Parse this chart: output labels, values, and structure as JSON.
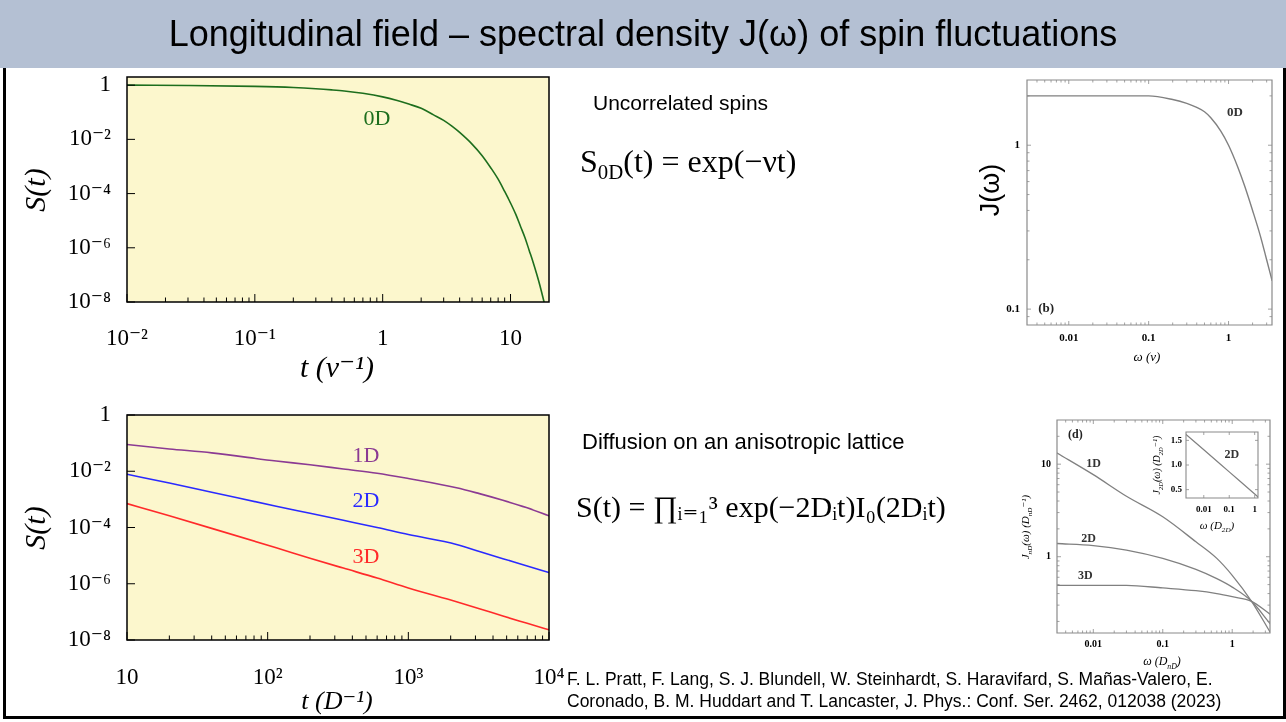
{
  "chart_data": [
    {
      "type": "line",
      "xlabel": "t (ν⁻¹)",
      "ylabel": "S(t)",
      "log": "xy",
      "xlim": [
        0.01,
        20
      ],
      "ylim": [
        1e-08,
        2
      ],
      "xticks": [
        {
          "value": 0.01,
          "label": "10⁻²"
        },
        {
          "value": 0.02,
          "label": null
        },
        {
          "value": 0.03,
          "label": null
        },
        {
          "value": 0.04,
          "label": null
        },
        {
          "value": 0.05,
          "label": null
        },
        {
          "value": 0.06,
          "label": null
        },
        {
          "value": 0.07,
          "label": null
        },
        {
          "value": 0.08,
          "label": null
        },
        {
          "value": 0.09,
          "label": null
        },
        {
          "value": 0.1,
          "label": "10⁻¹"
        },
        {
          "value": 0.2,
          "label": null
        },
        {
          "value": 0.3,
          "label": null
        },
        {
          "value": 0.4,
          "label": null
        },
        {
          "value": 0.5,
          "label": null
        },
        {
          "value": 0.6,
          "label": null
        },
        {
          "value": 0.7,
          "label": null
        },
        {
          "value": 0.8,
          "label": null
        },
        {
          "value": 0.9,
          "label": null
        },
        1,
        {
          "value": 2,
          "label": null
        },
        {
          "value": 3,
          "label": null
        },
        {
          "value": 4,
          "label": null
        },
        {
          "value": 5,
          "label": null
        },
        {
          "value": 6,
          "label": null
        },
        {
          "value": 7,
          "label": null
        },
        {
          "value": 8,
          "label": null
        },
        {
          "value": 9,
          "label": null
        },
        10
      ],
      "yticks": [
        {
          "value": 1e-08,
          "label": "10⁻⁸"
        },
        {
          "value": 1e-06,
          "label": "10⁻⁶"
        },
        {
          "value": 0.0001,
          "label": "10⁻⁴"
        },
        {
          "value": 0.01,
          "label": "10⁻²"
        },
        1
      ],
      "x": [
        0.01,
        0.03,
        0.1,
        0.2,
        0.3,
        0.4,
        0.5,
        0.7,
        1,
        1.3,
        1.6,
        2,
        2.5,
        3,
        3.5,
        4,
        5,
        6,
        7,
        8,
        9,
        10,
        11,
        12,
        13,
        14,
        15,
        16,
        17,
        18.3
      ],
      "series": [
        {
          "name": "0D",
          "color": "#1d6e1d",
          "values": [
            1,
            0.97,
            0.9,
            0.82,
            0.74,
            0.67,
            0.61,
            0.5,
            0.37,
            0.27,
            0.2,
            0.14,
            0.08,
            0.05,
            0.03,
            0.018,
            0.0067,
            0.0025,
            0.0009,
            0.00034,
            0.00012,
            4.5e-05,
            1.7e-05,
            6e-06,
            2.3e-06,
            8e-07,
            3e-07,
            1.1e-07,
            4e-08,
            1e-08
          ]
        }
      ]
    },
    {
      "type": "line",
      "xlabel": "ω (ν)",
      "ylabel": "J(ω)",
      "log": "xy",
      "xlim": [
        0.003,
        3.5
      ],
      "ylim": [
        0.08,
        2.5
      ],
      "xticks": [
        {
          "value": 0.004,
          "label": null
        },
        {
          "value": 0.005,
          "label": null
        },
        {
          "value": 0.006,
          "label": null
        },
        {
          "value": 0.007,
          "label": null
        },
        {
          "value": 0.008,
          "label": null
        },
        {
          "value": 0.009,
          "label": null
        },
        0.01,
        {
          "value": 0.02,
          "label": null
        },
        {
          "value": 0.03,
          "label": null
        },
        {
          "value": 0.04,
          "label": null
        },
        {
          "value": 0.05,
          "label": null
        },
        {
          "value": 0.06,
          "label": null
        },
        {
          "value": 0.07,
          "label": null
        },
        {
          "value": 0.08,
          "label": null
        },
        {
          "value": 0.09,
          "label": null
        },
        0.1,
        {
          "value": 0.2,
          "label": null
        },
        {
          "value": 0.3,
          "label": null
        },
        {
          "value": 0.4,
          "label": null
        },
        {
          "value": 0.5,
          "label": null
        },
        {
          "value": 0.6,
          "label": null
        },
        {
          "value": 0.7,
          "label": null
        },
        {
          "value": 0.8,
          "label": null
        },
        {
          "value": 0.9,
          "label": null
        },
        1,
        {
          "value": 2,
          "label": null
        },
        {
          "value": 3,
          "label": null
        }
      ],
      "yticks": [
        {
          "value": 0.09,
          "label": null
        },
        0.1,
        {
          "value": 0.2,
          "label": null
        },
        {
          "value": 0.3,
          "label": null
        },
        {
          "value": 0.4,
          "label": null
        },
        {
          "value": 0.5,
          "label": null
        },
        {
          "value": 0.6,
          "label": null
        },
        {
          "value": 0.7,
          "label": null
        },
        {
          "value": 0.8,
          "label": null
        },
        {
          "value": 0.9,
          "label": null
        },
        1,
        {
          "value": 2,
          "label": null
        }
      ],
      "x": [
        0.003,
        0.01,
        0.03,
        0.1,
        0.2,
        0.3,
        0.4,
        0.5,
        0.6,
        0.8,
        1,
        1.3,
        1.6,
        2,
        2.5,
        3,
        3.5
      ],
      "series": [
        {
          "name": "0D",
          "color": "#808080",
          "values": [
            2,
            2,
            2,
            2,
            1.9,
            1.8,
            1.7,
            1.6,
            1.47,
            1.22,
            1,
            0.74,
            0.56,
            0.4,
            0.28,
            0.2,
            0.15
          ]
        }
      ],
      "annotations": [
        "(b)"
      ]
    },
    {
      "type": "line",
      "xlabel": "t (D⁻¹)",
      "ylabel": "S(t)",
      "log": "xy",
      "xlim": [
        10,
        10000
      ],
      "ylim": [
        1e-08,
        1
      ],
      "xticks": [
        10,
        {
          "value": 20,
          "label": null
        },
        {
          "value": 30,
          "label": null
        },
        {
          "value": 40,
          "label": null
        },
        {
          "value": 50,
          "label": null
        },
        {
          "value": 60,
          "label": null
        },
        {
          "value": 70,
          "label": null
        },
        {
          "value": 80,
          "label": null
        },
        {
          "value": 90,
          "label": null
        },
        {
          "value": 100,
          "label": "10²"
        },
        {
          "value": 200,
          "label": null
        },
        {
          "value": 300,
          "label": null
        },
        {
          "value": 400,
          "label": null
        },
        {
          "value": 500,
          "label": null
        },
        {
          "value": 600,
          "label": null
        },
        {
          "value": 700,
          "label": null
        },
        {
          "value": 800,
          "label": null
        },
        {
          "value": 900,
          "label": null
        },
        {
          "value": 1000,
          "label": "10³"
        },
        {
          "value": 2000,
          "label": null
        },
        {
          "value": 3000,
          "label": null
        },
        {
          "value": 4000,
          "label": null
        },
        {
          "value": 5000,
          "label": null
        },
        {
          "value": 6000,
          "label": null
        },
        {
          "value": 7000,
          "label": null
        },
        {
          "value": 8000,
          "label": null
        },
        {
          "value": 9000,
          "label": null
        },
        {
          "value": 10000,
          "label": "10⁴"
        }
      ],
      "yticks": [
        {
          "value": 1e-08,
          "label": "10⁻⁸"
        },
        {
          "value": 1e-06,
          "label": "10⁻⁶"
        },
        {
          "value": 0.0001,
          "label": "10⁻⁴"
        },
        {
          "value": 0.01,
          "label": "10⁻²"
        },
        1
      ],
      "x": [
        10,
        20,
        40,
        115,
        200,
        345,
        600,
        1000,
        2200,
        3200,
        4700,
        6900,
        10000
      ],
      "series": [
        {
          "name": "1D",
          "color": "#8b3a93",
          "values": [
            0.089,
            0.062,
            0.045,
            0.023,
            0.017,
            0.012,
            0.0085,
            0.0055,
            0.0026,
            0.0016,
            0.00093,
            0.00051,
            0.00026
          ]
        },
        {
          "name": "2D",
          "color": "#2a2aff",
          "values": [
            0.0078,
            0.0038,
            0.0018,
            0.00057,
            0.00032,
            0.00018,
            0.0001,
            5.6e-05,
            2.5e-05,
            1.4e-05,
            7.8e-06,
            4.4e-06,
            2.5e-06
          ]
        },
        {
          "name": "3D",
          "color": "#ff2a2a",
          "values": [
            0.00071,
            0.00026,
            9.3e-05,
            1.9e-05,
            8.1e-06,
            3.6e-06,
            1.6e-06,
            7.1e-07,
            2.3e-07,
            1.3e-07,
            7.1e-08,
            4e-08,
            2.3e-08
          ]
        }
      ]
    },
    {
      "type": "line",
      "xlabel": "ω (D$_{nD}$)",
      "ylabel": "J$_{nD}$(ω) (D$_{nD}$⁻¹)",
      "log": "xy",
      "xlim": [
        0.003,
        3.5
      ],
      "ylim": [
        0.15,
        30
      ],
      "xticks": [
        {
          "value": 0.004,
          "label": null
        },
        {
          "value": 0.005,
          "label": null
        },
        {
          "value": 0.006,
          "label": null
        },
        {
          "value": 0.007,
          "label": null
        },
        {
          "value": 0.008,
          "label": null
        },
        {
          "value": 0.009,
          "label": null
        },
        0.01,
        {
          "value": 0.02,
          "label": null
        },
        {
          "value": 0.03,
          "label": null
        },
        {
          "value": 0.04,
          "label": null
        },
        {
          "value": 0.05,
          "label": null
        },
        {
          "value": 0.06,
          "label": null
        },
        {
          "value": 0.07,
          "label": null
        },
        {
          "value": 0.08,
          "label": null
        },
        {
          "value": 0.09,
          "label": null
        },
        0.1,
        {
          "value": 0.2,
          "label": null
        },
        {
          "value": 0.3,
          "label": null
        },
        {
          "value": 0.4,
          "label": null
        },
        {
          "value": 0.5,
          "label": null
        },
        {
          "value": 0.6,
          "label": null
        },
        {
          "value": 0.7,
          "label": null
        },
        {
          "value": 0.8,
          "label": null
        },
        {
          "value": 0.9,
          "label": null
        },
        1,
        {
          "value": 2,
          "label": null
        },
        {
          "value": 3,
          "label": null
        }
      ],
      "yticks": [
        {
          "value": 0.2,
          "label": null
        },
        {
          "value": 0.3,
          "label": null
        },
        {
          "value": 0.4,
          "label": null
        },
        {
          "value": 0.5,
          "label": null
        },
        {
          "value": 0.6,
          "label": null
        },
        {
          "value": 0.7,
          "label": null
        },
        {
          "value": 0.8,
          "label": null
        },
        {
          "value": 0.9,
          "label": null
        },
        1,
        {
          "value": 2,
          "label": null
        },
        {
          "value": 3,
          "label": null
        },
        {
          "value": 4,
          "label": null
        },
        {
          "value": 5,
          "label": null
        },
        {
          "value": 6,
          "label": null
        },
        {
          "value": 7,
          "label": null
        },
        {
          "value": 8,
          "label": null
        },
        {
          "value": 9,
          "label": null
        },
        10,
        {
          "value": 20,
          "label": null
        }
      ],
      "x": [
        0.003,
        0.01,
        0.03,
        0.1,
        0.3,
        0.6,
        1,
        1.9,
        3.5
      ],
      "series": [
        {
          "name": "1D",
          "color": "#808080",
          "values": [
            13.2,
            7.7,
            4.5,
            2.7,
            1.45,
            0.96,
            0.63,
            0.33,
            0.154
          ]
        },
        {
          "name": "2D",
          "color": "#808080",
          "values": [
            1.39,
            1.32,
            1.18,
            0.96,
            0.73,
            0.58,
            0.47,
            0.33,
            0.19
          ]
        },
        {
          "name": "3D",
          "color": "#808080",
          "values": [
            0.49,
            0.49,
            0.49,
            0.46,
            0.43,
            0.4,
            0.37,
            0.33,
            0.24
          ]
        }
      ],
      "annotations": [
        "(d)"
      ]
    },
    {
      "type": "line",
      "xlabel": "ω (D$_{2D}$)",
      "ylabel": "J$_{2D}$(ω) (D$_{2D}$⁻¹)",
      "log": "x",
      "xlim": [
        0.002,
        1.35
      ],
      "ylim": [
        0.33,
        1.67
      ],
      "xticks": [
        0.01,
        0.1,
        1
      ],
      "yticks": [
        0.5,
        {
          "value": 1,
          "label": "1.0"
        },
        1.5
      ],
      "x": [
        0.002,
        0.01,
        0.1,
        1,
        1.35
      ],
      "series": [
        {
          "name": "2D",
          "color": "#808080",
          "values": [
            1.62,
            1.31,
            0.86,
            0.41,
            0.35
          ]
        }
      ]
    },
    {
      "type": "other",
      "title": "Longitudinal field – spectral density J(ω) of spin fluctuations",
      "annotations": [
        "Uncorrelated spins",
        "S$_{0D}$(t) = exp(−νt)",
        "Diffusion on an anisotropic lattice",
        "S(t) = ∏ᵢ₌₁³ exp(−2Dᵢt)I₀(2Dᵢt)",
        "F. L. Pratt, F. Lang, S. J. Blundell, W. Steinhardt, S. Haravifard, S. Mañas-Valero, E. Coronado, B. M. Huddart and T. Lancaster, J. Phys.: Conf. Ser. 2462, 012038 (2023)"
      ]
    }
  ]
}
